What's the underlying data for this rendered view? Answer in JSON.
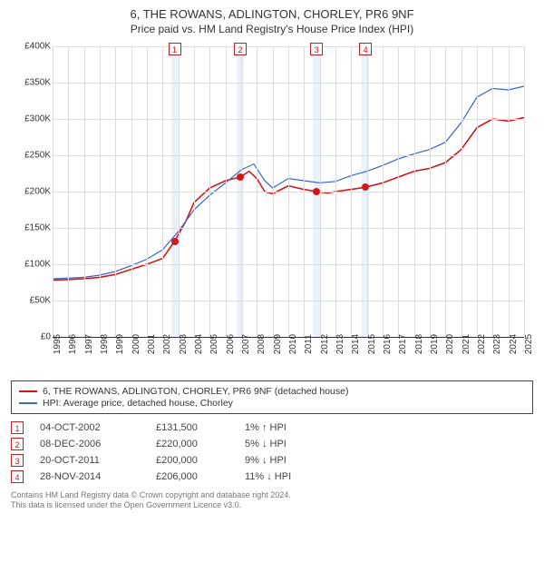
{
  "title": {
    "line1": "6, THE ROWANS, ADLINGTON, CHORLEY, PR6 9NF",
    "line2": "Price paid vs. HM Land Registry's House Price Index (HPI)"
  },
  "chart": {
    "type": "line",
    "x_years": [
      1995,
      1996,
      1997,
      1998,
      1999,
      2000,
      2001,
      2002,
      2003,
      2004,
      2005,
      2006,
      2007,
      2008,
      2009,
      2010,
      2011,
      2012,
      2013,
      2014,
      2015,
      2016,
      2017,
      2018,
      2019,
      2020,
      2021,
      2022,
      2023,
      2024,
      2025
    ],
    "y_ticks": [
      0,
      50000,
      100000,
      150000,
      200000,
      250000,
      300000,
      350000,
      400000
    ],
    "y_tick_labels": [
      "£0",
      "£50K",
      "£100K",
      "£150K",
      "£200K",
      "£250K",
      "£300K",
      "£350K",
      "£400K"
    ],
    "ylim": [
      0,
      400000
    ],
    "grid_color": "#dddddd",
    "axis_color": "#333333",
    "background": "#ffffff",
    "marker_band_color": "#eaf1fb",
    "marker_border_color": "#c02020",
    "series": [
      {
        "name": "6, THE ROWANS, ADLINGTON, CHORLEY, PR6 9NF (detached house)",
        "color": "#d01818",
        "width": 1.6,
        "points": [
          [
            1995.0,
            78000
          ],
          [
            1996.0,
            79000
          ],
          [
            1997.0,
            80000
          ],
          [
            1998.0,
            82000
          ],
          [
            1999.0,
            86000
          ],
          [
            2000.0,
            93000
          ],
          [
            2001.0,
            100000
          ],
          [
            2002.0,
            108000
          ],
          [
            2002.76,
            131500
          ],
          [
            2003.5,
            160000
          ],
          [
            2004.0,
            185000
          ],
          [
            2005.0,
            205000
          ],
          [
            2006.0,
            215000
          ],
          [
            2006.94,
            220000
          ],
          [
            2007.5,
            228000
          ],
          [
            2008.0,
            218000
          ],
          [
            2008.5,
            200000
          ],
          [
            2009.0,
            197000
          ],
          [
            2010.0,
            208000
          ],
          [
            2011.0,
            203000
          ],
          [
            2011.8,
            200000
          ],
          [
            2012.5,
            198000
          ],
          [
            2013.0,
            200000
          ],
          [
            2014.0,
            203000
          ],
          [
            2014.91,
            206000
          ],
          [
            2016.0,
            212000
          ],
          [
            2017.0,
            220000
          ],
          [
            2018.0,
            228000
          ],
          [
            2019.0,
            232000
          ],
          [
            2020.0,
            240000
          ],
          [
            2021.0,
            258000
          ],
          [
            2022.0,
            288000
          ],
          [
            2023.0,
            300000
          ],
          [
            2024.0,
            297000
          ],
          [
            2025.0,
            302000
          ]
        ]
      },
      {
        "name": "HPI: Average price, detached house, Chorley",
        "color": "#3b66c4",
        "width": 1.2,
        "points": [
          [
            1995.0,
            80000
          ],
          [
            1996.0,
            81000
          ],
          [
            1997.0,
            82000
          ],
          [
            1998.0,
            85000
          ],
          [
            1999.0,
            90000
          ],
          [
            2000.0,
            98000
          ],
          [
            2001.0,
            107000
          ],
          [
            2002.0,
            120000
          ],
          [
            2003.0,
            145000
          ],
          [
            2004.0,
            175000
          ],
          [
            2005.0,
            195000
          ],
          [
            2006.0,
            212000
          ],
          [
            2007.0,
            230000
          ],
          [
            2007.8,
            238000
          ],
          [
            2008.5,
            215000
          ],
          [
            2009.0,
            205000
          ],
          [
            2010.0,
            218000
          ],
          [
            2011.0,
            215000
          ],
          [
            2012.0,
            212000
          ],
          [
            2013.0,
            214000
          ],
          [
            2014.0,
            222000
          ],
          [
            2015.0,
            228000
          ],
          [
            2016.0,
            236000
          ],
          [
            2017.0,
            245000
          ],
          [
            2018.0,
            252000
          ],
          [
            2019.0,
            258000
          ],
          [
            2020.0,
            268000
          ],
          [
            2021.0,
            295000
          ],
          [
            2022.0,
            330000
          ],
          [
            2023.0,
            342000
          ],
          [
            2024.0,
            340000
          ],
          [
            2025.0,
            345000
          ]
        ]
      }
    ],
    "sale_markers": [
      {
        "n": "1",
        "year": 2002.76,
        "value": 131500
      },
      {
        "n": "2",
        "year": 2006.94,
        "value": 220000
      },
      {
        "n": "3",
        "year": 2011.8,
        "value": 200000
      },
      {
        "n": "4",
        "year": 2014.91,
        "value": 206000
      }
    ],
    "sale_dot_color": "#d01818"
  },
  "legend": {
    "items": [
      {
        "label": "6, THE ROWANS, ADLINGTON, CHORLEY, PR6 9NF (detached house)",
        "color": "#d01818"
      },
      {
        "label": "HPI: Average price, detached house, Chorley",
        "color": "#3b66c4"
      }
    ]
  },
  "sales": [
    {
      "n": "1",
      "date": "04-OCT-2002",
      "price": "£131,500",
      "diff": "1% ↑ HPI"
    },
    {
      "n": "2",
      "date": "08-DEC-2006",
      "price": "£220,000",
      "diff": "5% ↓ HPI"
    },
    {
      "n": "3",
      "date": "20-OCT-2011",
      "price": "£200,000",
      "diff": "9% ↓ HPI"
    },
    {
      "n": "4",
      "date": "28-NOV-2014",
      "price": "£206,000",
      "diff": "11% ↓ HPI"
    }
  ],
  "footer": {
    "line1": "Contains HM Land Registry data © Crown copyright and database right 2024.",
    "line2": "This data is licensed under the Open Government Licence v3.0."
  },
  "style": {
    "marker_border": "#c02020",
    "sale_num_color": "#c02020"
  }
}
